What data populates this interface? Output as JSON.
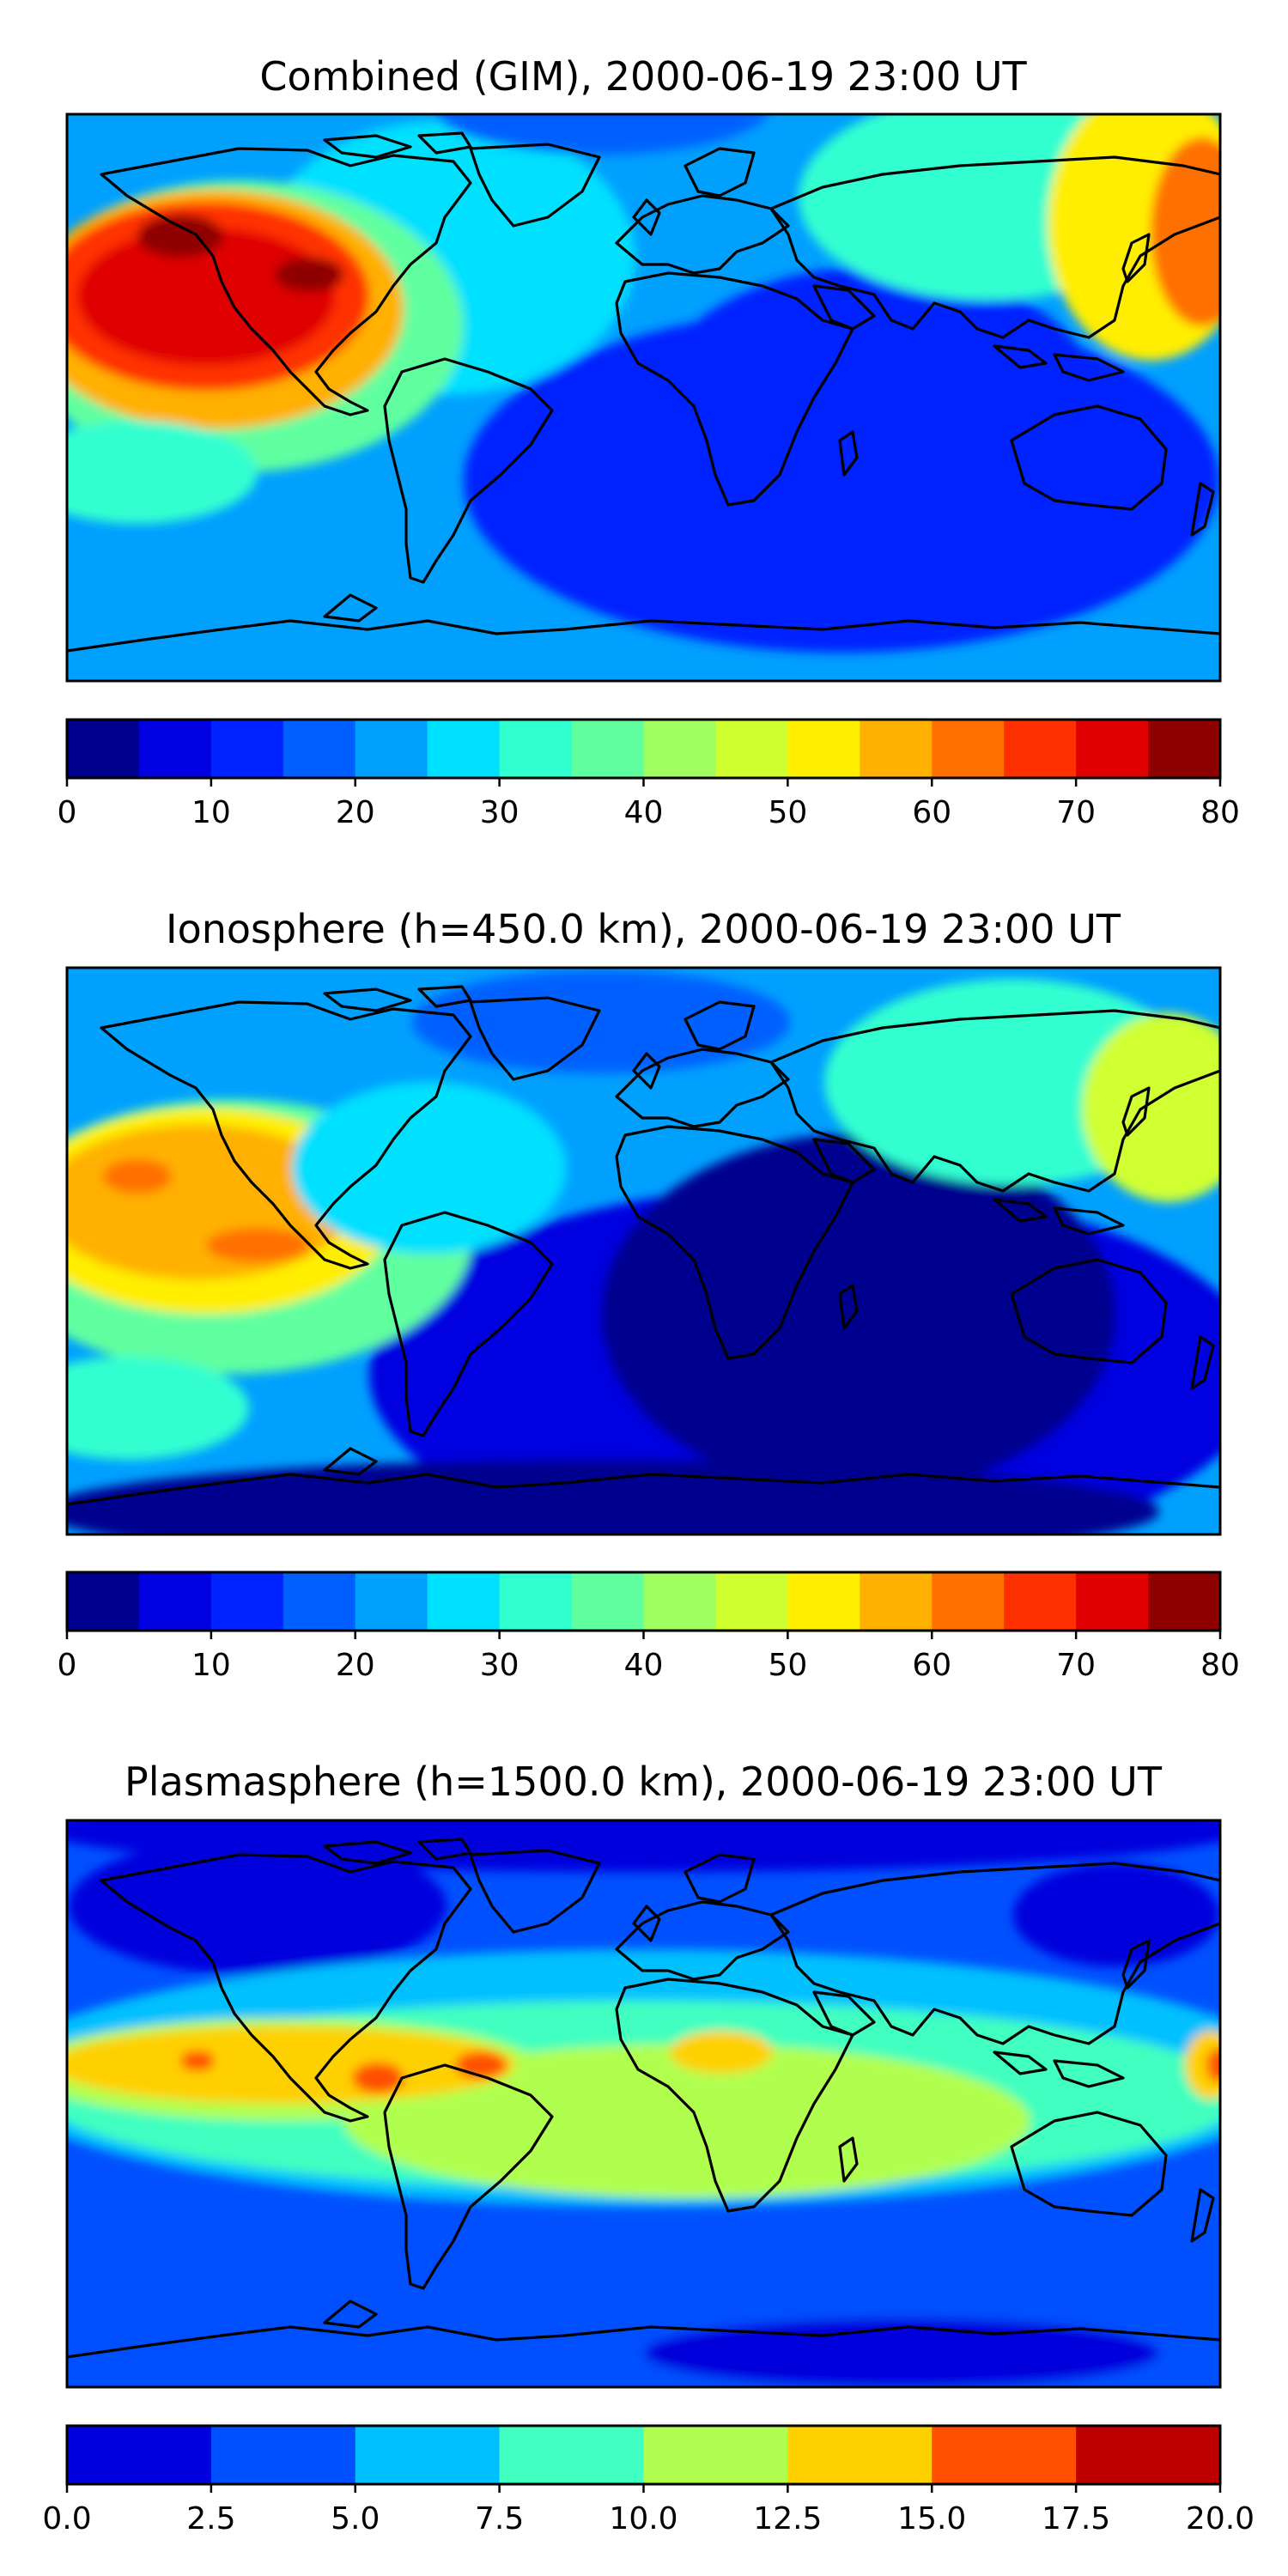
{
  "panels": [
    {
      "title": "Combined (GIM), 2000-06-19 23:00 UT",
      "colormap": "jet",
      "colorbar": {
        "min": 0,
        "max": 80,
        "step": 5,
        "ticks": [
          "0",
          "10",
          "20",
          "30",
          "40",
          "50",
          "60",
          "70",
          "80"
        ],
        "colors": [
          "#00008f",
          "#0000e0",
          "#0022ff",
          "#0060ff",
          "#00a0ff",
          "#00e0ff",
          "#30ffd0",
          "#60ffa0",
          "#a0ff60",
          "#d0ff30",
          "#ffee00",
          "#ffb000",
          "#ff7000",
          "#ff3000",
          "#e00000",
          "#8f0000"
        ]
      }
    },
    {
      "title": "Ionosphere  (h=450.0 km), 2000-06-19 23:00 UT",
      "colormap": "jet",
      "colorbar": {
        "min": 0,
        "max": 80,
        "step": 5,
        "ticks": [
          "0",
          "10",
          "20",
          "30",
          "40",
          "50",
          "60",
          "70",
          "80"
        ],
        "colors": [
          "#00008f",
          "#0000e0",
          "#0022ff",
          "#0060ff",
          "#00a0ff",
          "#00e0ff",
          "#30ffd0",
          "#60ffa0",
          "#a0ff60",
          "#d0ff30",
          "#ffee00",
          "#ffb000",
          "#ff7000",
          "#ff3000",
          "#e00000",
          "#8f0000"
        ]
      }
    },
    {
      "title": "Plasmasphere (h=1500.0 km), 2000-06-19 23:00 UT",
      "colormap": "jet",
      "colorbar": {
        "min": 0,
        "max": 20,
        "step": 2.5,
        "ticks": [
          "0.0",
          "2.5",
          "5.0",
          "7.5",
          "10.0",
          "12.5",
          "15.0",
          "17.5",
          "20.0"
        ],
        "colors": [
          "#0000dd",
          "#0050ff",
          "#00c0ff",
          "#40ffc0",
          "#b0ff50",
          "#ffd000",
          "#ff5000",
          "#c00000"
        ]
      }
    }
  ]
}
